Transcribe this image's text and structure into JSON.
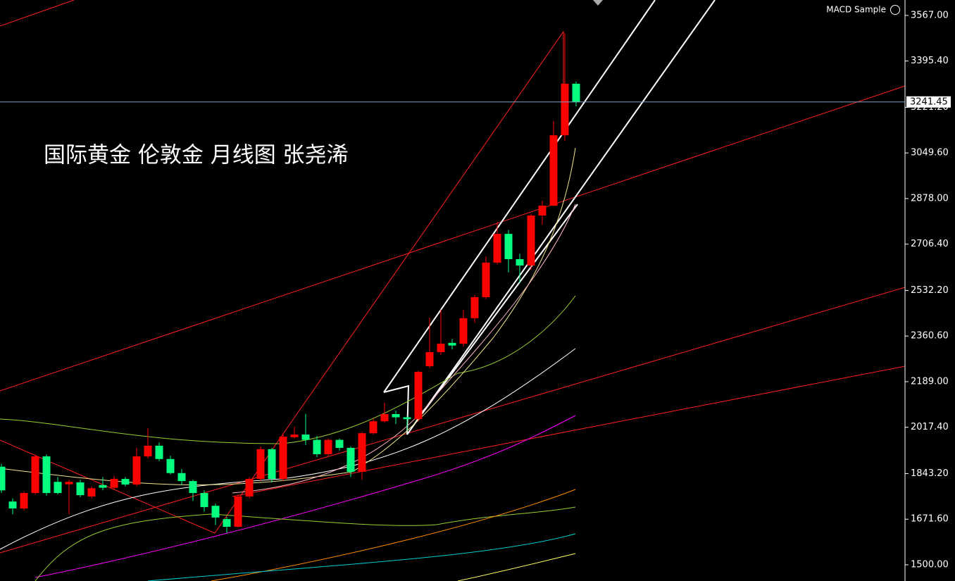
{
  "chart_data": {
    "type": "candlestick",
    "annotation": "国际黄金 伦敦金  月线图 张尧浠",
    "indicator_label": "MACD Sample",
    "up_color": "#ff0000",
    "down_color": "#00ff7f",
    "ylim": [
      1439,
      3625
    ],
    "yticks": [
      {
        "value": 3567,
        "label": "3567.00"
      },
      {
        "value": 3395.4,
        "label": "3395.40"
      },
      {
        "value": 3221.2,
        "label": "3221.20"
      },
      {
        "value": 3049.6,
        "label": "3049.60"
      },
      {
        "value": 2878,
        "label": "2878.00"
      },
      {
        "value": 2706.4,
        "label": "2706.40"
      },
      {
        "value": 2532.2,
        "label": "2532.20"
      },
      {
        "value": 2360.6,
        "label": "2360.60"
      },
      {
        "value": 2189,
        "label": "2189.00"
      },
      {
        "value": 2017.4,
        "label": "2017.40"
      },
      {
        "value": 1843.2,
        "label": "1843.20"
      },
      {
        "value": 1671.6,
        "label": "1671.60"
      },
      {
        "value": 1500,
        "label": "1500.00"
      }
    ],
    "price_line": {
      "value": 3241.45,
      "label": "3241.45"
    },
    "open": [
      1869,
      1738,
      1712,
      1770,
      1908,
      1812,
      1803,
      1810,
      1757,
      1800,
      1790,
      1823,
      1802,
      1908,
      1948,
      1898,
      1845,
      1815,
      1770,
      1722,
      1672,
      1643,
      1757,
      1823,
      1935,
      1823,
      1980,
      1990,
      1970,
      1916,
      1970,
      1940,
      1850,
      1995,
      2040,
      2067,
      2055,
      2048,
      2247,
      2300,
      2335,
      2332,
      2428,
      2507,
      2637,
      2745,
      2650,
      2626,
      2814,
      2851,
      3116,
      3310
    ],
    "high": [
      1880,
      1750,
      1775,
      1915,
      1915,
      1830,
      1820,
      1820,
      1795,
      1830,
      1835,
      1830,
      1940,
      2015,
      1960,
      1910,
      1860,
      1820,
      1780,
      1730,
      1680,
      1765,
      1830,
      1945,
      1940,
      1995,
      2020,
      2068,
      1985,
      1975,
      1975,
      1945,
      2000,
      2050,
      2110,
      2080,
      2060,
      2230,
      2430,
      2460,
      2350,
      2460,
      2515,
      2660,
      2790,
      2760,
      2670,
      2820,
      2870,
      3170,
      3500,
      3318
    ],
    "low": [
      1770,
      1690,
      1705,
      1765,
      1760,
      1765,
      1690,
      1755,
      1750,
      1780,
      1785,
      1795,
      1795,
      1900,
      1890,
      1840,
      1800,
      1740,
      1700,
      1650,
      1620,
      1640,
      1750,
      1815,
      1810,
      1815,
      1975,
      1950,
      1905,
      1910,
      1930,
      1830,
      1820,
      1990,
      2035,
      2030,
      2005,
      2040,
      2240,
      2290,
      2310,
      2320,
      2410,
      2500,
      2630,
      2600,
      2560,
      2610,
      2780,
      2850,
      3095,
      3225
    ],
    "close": [
      1780,
      1712,
      1770,
      1908,
      1770,
      1770,
      1812,
      1762,
      1788,
      1790,
      1823,
      1802,
      1908,
      1948,
      1898,
      1845,
      1815,
      1770,
      1717,
      1678,
      1643,
      1757,
      1823,
      1935,
      1823,
      1982,
      1990,
      1970,
      1916,
      1970,
      1940,
      1850,
      1995,
      2040,
      2067,
      2055,
      2048,
      2226,
      2300,
      2332,
      2325,
      2428,
      2507,
      2637,
      2745,
      2650,
      2626,
      2814,
      2851,
      3116,
      3310,
      3241
    ]
  }
}
